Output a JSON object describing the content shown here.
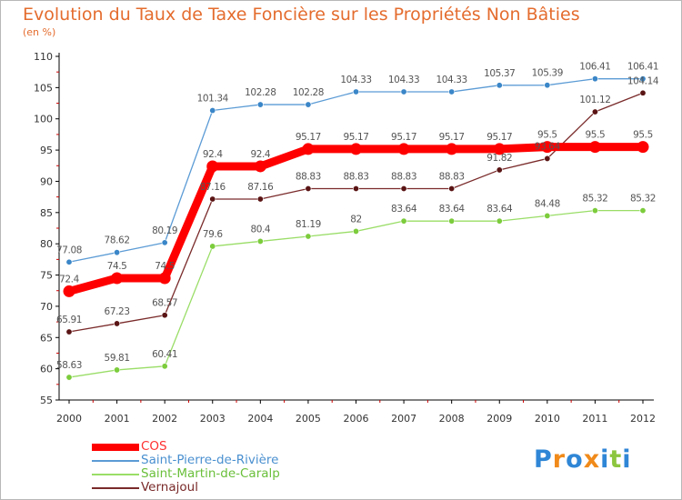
{
  "header": {
    "title": "Evolution du Taux de Taxe Foncière sur les Propriétés Non Bâties",
    "unit": "(en %)"
  },
  "colors": {
    "title": "#e46c2e",
    "axis": "#000000",
    "tick_red": "#cc0000"
  },
  "chart_data": {
    "type": "line",
    "title": "Evolution du Taux de Taxe Foncière sur les Propriétés Non Bâties",
    "xlabel": "",
    "ylabel": "(en %)",
    "ylim": [
      55,
      110
    ],
    "yticks": [
      55,
      60,
      65,
      70,
      75,
      80,
      85,
      90,
      95,
      100,
      105,
      110
    ],
    "x": [
      "2000",
      "2001",
      "2002",
      "2003",
      "2004",
      "2005",
      "2006",
      "2007",
      "2008",
      "2009",
      "2010",
      "2011",
      "2012"
    ],
    "grid": false,
    "series": [
      {
        "name": "COS",
        "color": "#ff0000",
        "marker": "#ff0000",
        "emphasis": true,
        "values": [
          72.4,
          74.5,
          74.5,
          92.4,
          92.4,
          95.17,
          95.17,
          95.17,
          95.17,
          95.17,
          95.5,
          95.5,
          95.5
        ],
        "labels": [
          "72.4",
          "74.5",
          "74.5",
          "92.4",
          "92.4",
          "95.17",
          "95.17",
          "95.17",
          "95.17",
          "95.17",
          "95.5",
          "95.5",
          "95.5"
        ]
      },
      {
        "name": "Saint-Pierre-de-Rivière",
        "color": "#5b9bd5",
        "marker": "#3a86c8",
        "emphasis": false,
        "values": [
          77.08,
          78.62,
          80.19,
          101.34,
          102.28,
          102.28,
          104.33,
          104.33,
          104.33,
          105.37,
          105.39,
          106.41,
          106.41
        ],
        "labels": [
          "77.08",
          "78.62",
          "80.19",
          "101.34",
          "102.28",
          "102.28",
          "104.33",
          "104.33",
          "104.33",
          "105.37",
          "105.39",
          "106.41",
          "106.41"
        ]
      },
      {
        "name": "Saint-Martin-de-Caralp",
        "color": "#99dd66",
        "marker": "#7ccc3c",
        "emphasis": false,
        "values": [
          58.63,
          59.81,
          60.41,
          79.6,
          80.4,
          81.19,
          82,
          83.64,
          83.64,
          83.64,
          84.48,
          85.32,
          85.32
        ],
        "labels": [
          "58.63",
          "59.81",
          "60.41",
          "79.6",
          "80.4",
          "81.19",
          "82",
          "83.64",
          "83.64",
          "83.64",
          "84.48",
          "85.32",
          "85.32"
        ]
      },
      {
        "name": "Vernajoul",
        "color": "#7a2a2a",
        "marker": "#5a1414",
        "emphasis": false,
        "values": [
          65.91,
          67.23,
          68.57,
          87.16,
          87.16,
          88.83,
          88.83,
          88.83,
          88.83,
          91.82,
          93.64,
          101.12,
          104.14
        ],
        "labels": [
          "65.91",
          "67.23",
          "68.57",
          "87.16",
          "87.16",
          "88.83",
          "88.83",
          "88.83",
          "88.83",
          "91.82",
          "93.64",
          "101.12",
          "104.14"
        ]
      }
    ]
  },
  "legend": {
    "items": [
      {
        "label": "COS",
        "color": "#ff0000",
        "text_color": "#ff3030"
      },
      {
        "label": "Saint-Pierre-de-Rivière",
        "color": "#5b9bd5",
        "text_color": "#4a90d0"
      },
      {
        "label": "Saint-Martin-de-Caralp",
        "color": "#99dd66",
        "text_color": "#6abf3a"
      },
      {
        "label": "Vernajoul",
        "color": "#7a2a2a",
        "text_color": "#7a2a2a"
      }
    ]
  },
  "logo": {
    "letters": [
      "P",
      "r",
      "o",
      "x",
      "i",
      "t",
      "i"
    ],
    "colors": [
      "#2f86d6",
      "#f08a1a",
      "#2f86d6",
      "#f08a1a",
      "#2f86d6",
      "#8cc63f",
      "#2f86d6"
    ]
  }
}
